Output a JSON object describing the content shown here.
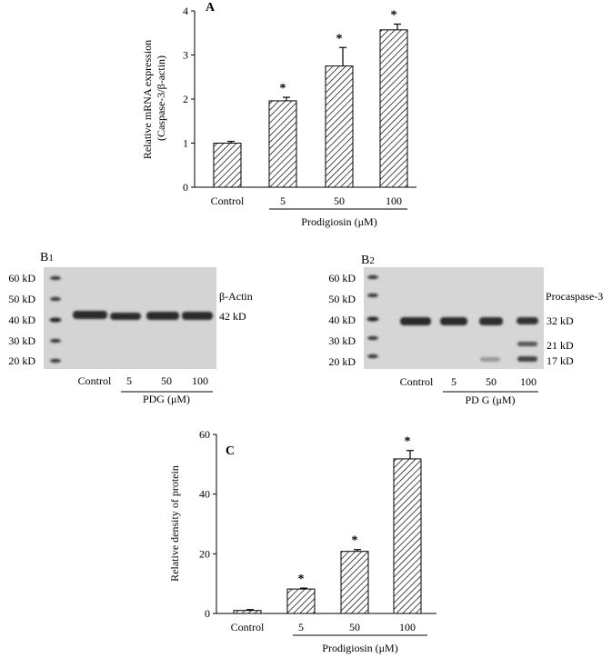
{
  "chart_data": [
    {
      "panel": "A",
      "type": "bar",
      "ylabel_lines": [
        "Relative mRNA expression",
        "(Caspase-3/β-actin)"
      ],
      "ylim": [
        0,
        4
      ],
      "yticks": [
        0,
        1,
        2,
        3,
        4
      ],
      "categories": [
        "Control",
        "5",
        "50",
        "100"
      ],
      "values": [
        1.0,
        1.96,
        2.75,
        3.57
      ],
      "errors": [
        0.04,
        0.08,
        0.42,
        0.13
      ],
      "significance": [
        "",
        "*",
        "*",
        "*"
      ],
      "group_label": "Prodigiosin (μM)",
      "bar_fill": "diagonal hatch"
    },
    {
      "panel": "C",
      "type": "bar",
      "ylabel": "Relative density of protein",
      "ylim": [
        0,
        60
      ],
      "yticks": [
        0,
        20,
        40,
        60
      ],
      "categories": [
        "Control",
        "5",
        "50",
        "100"
      ],
      "values": [
        1.0,
        8.2,
        20.8,
        51.8
      ],
      "errors": [
        0.3,
        0.3,
        0.6,
        2.8
      ],
      "significance": [
        "",
        "*",
        "*",
        "*"
      ],
      "group_label": "Prodigiosin (μM)",
      "bar_fill": "diagonal hatch"
    }
  ],
  "blots": [
    {
      "panel": "B1",
      "label_main": "B",
      "label_sub": "1",
      "markers": [
        "60 kD",
        "50 kD",
        "40 kD",
        "30 kD",
        "20 kD"
      ],
      "right_labels": [
        "β-Actin",
        "42 kD"
      ],
      "lanes": [
        "Control",
        "5",
        "50",
        "100"
      ],
      "group_label": "PDG (μM)"
    },
    {
      "panel": "B2",
      "label_main": "B",
      "label_sub": "2",
      "markers": [
        "60 kD",
        "50 kD",
        "40 kD",
        "30 kD",
        "20 kD"
      ],
      "right_labels": [
        "Procaspase-3",
        "32 kD",
        "21 kD",
        "17 kD"
      ],
      "lanes": [
        "Control",
        "5",
        "50",
        "100"
      ],
      "group_label": "PD G (μM)"
    }
  ],
  "colors": {
    "blot_background": "#d4d4d4",
    "band": "#2a2a2a",
    "bar_stroke": "#000000"
  }
}
